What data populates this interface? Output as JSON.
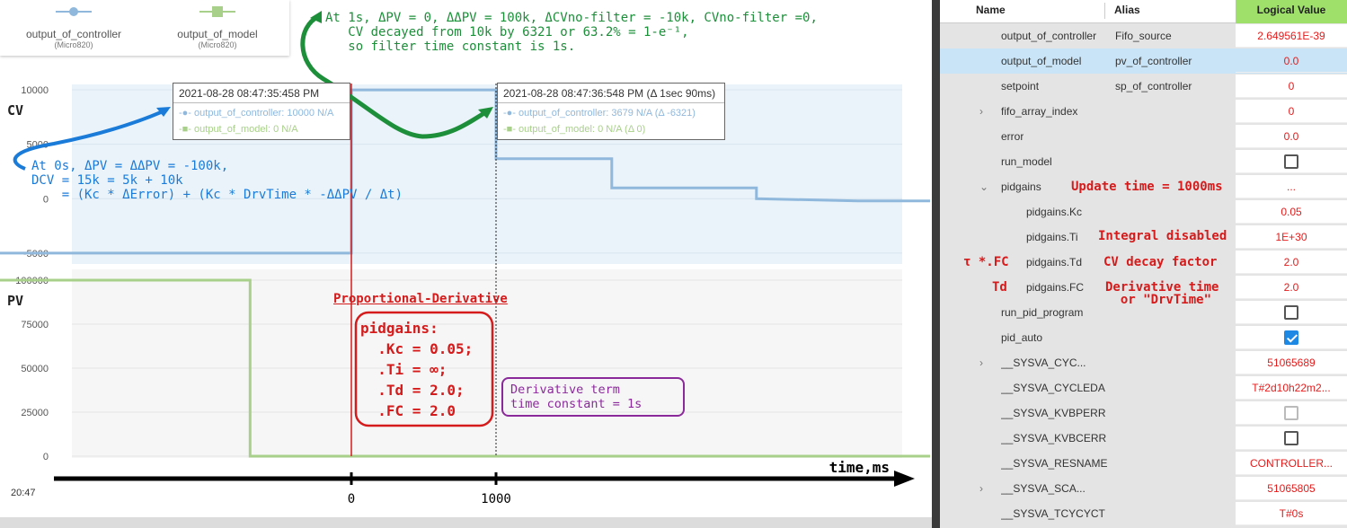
{
  "legend": [
    {
      "name": "output_of_controller",
      "sub": "(Micro820)",
      "color": "#8fb8dc"
    },
    {
      "name": "output_of_model",
      "sub": "(Micro820)",
      "color": "#a8d08a"
    }
  ],
  "chart_data": [
    {
      "type": "line",
      "title": "",
      "ylabel": "CV",
      "yticks": [
        "10000",
        "5000",
        "0",
        "-5000"
      ],
      "ylim": [
        -6000,
        10500
      ],
      "series": [
        {
          "name": "output_of_controller",
          "color": "#8fb8dc",
          "points": [
            [
              -3.2,
              -5000
            ],
            [
              0,
              -5000
            ],
            [
              0,
              10000
            ],
            [
              1,
              10000
            ],
            [
              1,
              3679
            ],
            [
              1.8,
              3679
            ],
            [
              1.8,
              1000
            ],
            [
              2.8,
              1000
            ],
            [
              2.8,
              0
            ],
            [
              3.5,
              -200
            ],
            [
              4.0,
              -200
            ]
          ]
        }
      ]
    },
    {
      "type": "line",
      "title": "",
      "ylabel": "PV",
      "yticks": [
        "100000",
        "75000",
        "50000",
        "25000",
        "0"
      ],
      "ylim": [
        0,
        100000
      ],
      "series": [
        {
          "name": "output_of_model",
          "color": "#a8d08a",
          "points": [
            [
              -3.2,
              100000
            ],
            [
              -0.7,
              100000
            ],
            [
              -0.7,
              0
            ],
            [
              4.0,
              0
            ]
          ]
        }
      ]
    }
  ],
  "axis": {
    "label": "time,ms",
    "tick0": "0",
    "tick1": "1000",
    "clock": "20:47"
  },
  "tooltips": [
    {
      "title": "2021-08-28 08:47:35:458 PM",
      "row1": "output_of_controller: 10000 N/A",
      "row2": "output_of_model: 0 N/A"
    },
    {
      "title": "2021-08-28 08:47:36:548 PM (Δ 1sec 90ms)",
      "row1": "output_of_controller: 3679 N/A (Δ -6321)",
      "row2": "output_of_model: 0 N/A (Δ 0)"
    }
  ],
  "annotations": {
    "green": "At 1s, ΔPV = 0, ΔΔPV = 100k, ΔCVno-filter = -10k, CVno-filter =0,\n   CV decayed from 10k by 6321 or 63.2% = 1-e⁻¹,\n   so filter time constant is 1s.",
    "blue": "At 0s, ΔPV = ΔΔPV = -100k,\nDCV = 15k = 5k + 10k\n    = (Kc * ΔError) + (Kc * DrvTime * -ΔΔPV / Δt)",
    "pd_label": "Proportional-Derivative",
    "pidgains": "pidgains:\n  .Kc = 0.05;\n  .Ti = ∞;\n  .Td = 2.0;\n  .FC = 2.0",
    "purple": "Derivative term\ntime constant = 1s"
  },
  "table": {
    "headers": {
      "name": "Name",
      "alias": "Alias",
      "value": "Logical Value"
    },
    "rows": [
      {
        "name": "output_of_controller",
        "alias": "Fifo_source",
        "value": "2.649561E-39",
        "kind": "text",
        "indent": 0,
        "expand": ""
      },
      {
        "name": "output_of_model",
        "alias": "pv_of_controller",
        "value": "0.0",
        "kind": "text",
        "indent": 0,
        "expand": "",
        "selected": true
      },
      {
        "name": "setpoint",
        "alias": "sp_of_controller",
        "value": "0",
        "kind": "text",
        "indent": 0,
        "expand": ""
      },
      {
        "name": "fifo_array_index",
        "alias": "",
        "value": "0",
        "kind": "text",
        "indent": 0,
        "expand": ">"
      },
      {
        "name": "error",
        "alias": "",
        "value": "0.0",
        "kind": "text",
        "indent": 0,
        "expand": ""
      },
      {
        "name": "run_model",
        "alias": "",
        "value": "",
        "kind": "check",
        "checked": false,
        "indent": 0,
        "expand": ""
      },
      {
        "name": "pidgains",
        "alias": "",
        "value": "...",
        "kind": "text",
        "indent": 0,
        "expand": "v"
      },
      {
        "name": "pidgains.Kc",
        "alias": "",
        "value": "0.05",
        "kind": "text",
        "indent": 1,
        "expand": ""
      },
      {
        "name": "pidgains.Ti",
        "alias": "",
        "value": "1E+30",
        "kind": "text",
        "indent": 1,
        "expand": ""
      },
      {
        "name": "pidgains.Td",
        "alias": "",
        "value": "2.0",
        "kind": "text",
        "indent": 1,
        "expand": ""
      },
      {
        "name": "pidgains.FC",
        "alias": "",
        "value": "2.0",
        "kind": "text",
        "indent": 1,
        "expand": ""
      },
      {
        "name": "run_pid_program",
        "alias": "",
        "value": "",
        "kind": "check",
        "checked": false,
        "indent": 0,
        "expand": ""
      },
      {
        "name": "pid_auto",
        "alias": "",
        "value": "",
        "kind": "check",
        "checked": true,
        "indent": 0,
        "expand": ""
      },
      {
        "name": "__SYSVA_CYC...",
        "alias": "",
        "value": "51065689",
        "kind": "text",
        "indent": 0,
        "expand": ">"
      },
      {
        "name": "__SYSVA_CYCLEDA",
        "alias": "",
        "value": "T#2d10h22m2...",
        "kind": "text",
        "indent": 0,
        "expand": ""
      },
      {
        "name": "__SYSVA_KVBPERR",
        "alias": "",
        "value": "",
        "kind": "check",
        "checked": false,
        "disabled": true,
        "indent": 0,
        "expand": ""
      },
      {
        "name": "__SYSVA_KVBCERR",
        "alias": "",
        "value": "",
        "kind": "check",
        "checked": false,
        "indent": 0,
        "expand": ""
      },
      {
        "name": "__SYSVA_RESNAME",
        "alias": "",
        "value": "CONTROLLER...",
        "kind": "text",
        "indent": 0,
        "expand": ""
      },
      {
        "name": "__SYSVA_SCA...",
        "alias": "",
        "value": "51065805",
        "kind": "text",
        "indent": 0,
        "expand": ">"
      },
      {
        "name": "__SYSVA_TCYCYCT",
        "alias": "",
        "value": "T#0s",
        "kind": "text",
        "indent": 0,
        "expand": ""
      }
    ],
    "annotations": {
      "update": "Update time = 1000ms",
      "integral": "Integral disabled",
      "tau_fc": "τ *.FC",
      "cv_decay": "CV decay factor",
      "td": "Td",
      "deriv": "Derivative time\n  or \"DrvTime\""
    }
  }
}
